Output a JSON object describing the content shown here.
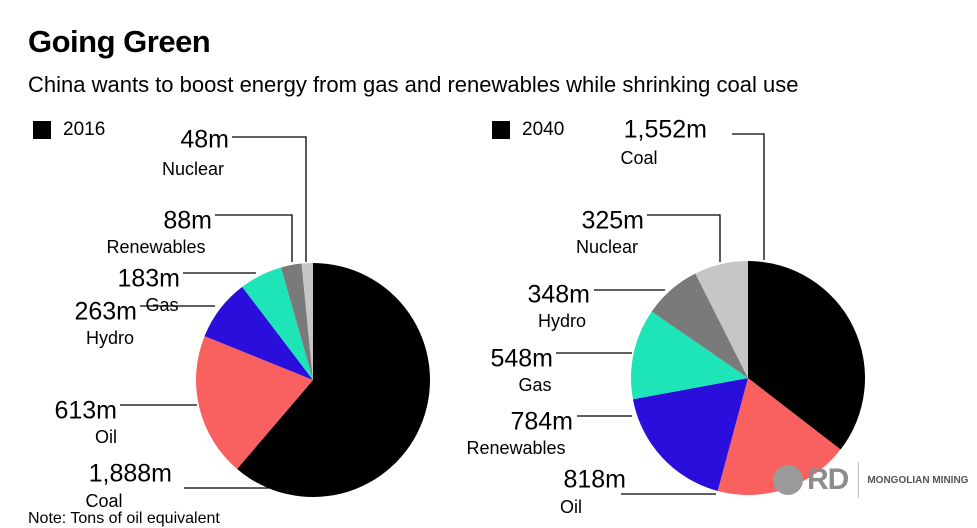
{
  "title": "Going Green",
  "subtitle": "China wants to boost energy from gas and renewables while shrinking coal use",
  "note": "Note: Tons of oil equivalent",
  "logo": {
    "brand": "RD",
    "text": "MONGOLIAN MINING"
  },
  "chart_data": [
    {
      "type": "pie",
      "legend": "2016",
      "slices": [
        {
          "name": "Coal",
          "label": "1,888m",
          "value": 1888,
          "color": "#000000"
        },
        {
          "name": "Oil",
          "label": "613m",
          "value": 613,
          "color": "#f96161"
        },
        {
          "name": "Hydro",
          "label": "263m",
          "value": 263,
          "color": "#2a0edb"
        },
        {
          "name": "Gas",
          "label": "183m",
          "value": 183,
          "color": "#1de5b7"
        },
        {
          "name": "Renewables",
          "label": "88m",
          "value": 88,
          "color": "#7a7a7a"
        },
        {
          "name": "Nuclear",
          "label": "48m",
          "value": 48,
          "color": "#c6c6c6"
        }
      ]
    },
    {
      "type": "pie",
      "legend": "2040",
      "slices": [
        {
          "name": "Coal",
          "label": "1,552m",
          "value": 1552,
          "color": "#000000"
        },
        {
          "name": "Oil",
          "label": "818m",
          "value": 818,
          "color": "#f96161"
        },
        {
          "name": "Renewables",
          "label": "784m",
          "value": 784,
          "color": "#2a0edb"
        },
        {
          "name": "Gas",
          "label": "548m",
          "value": 548,
          "color": "#1de5b7"
        },
        {
          "name": "Hydro",
          "label": "348m",
          "value": 348,
          "color": "#7a7a7a"
        },
        {
          "name": "Nuclear",
          "label": "325m",
          "value": 325,
          "color": "#c6c6c6"
        }
      ]
    }
  ]
}
